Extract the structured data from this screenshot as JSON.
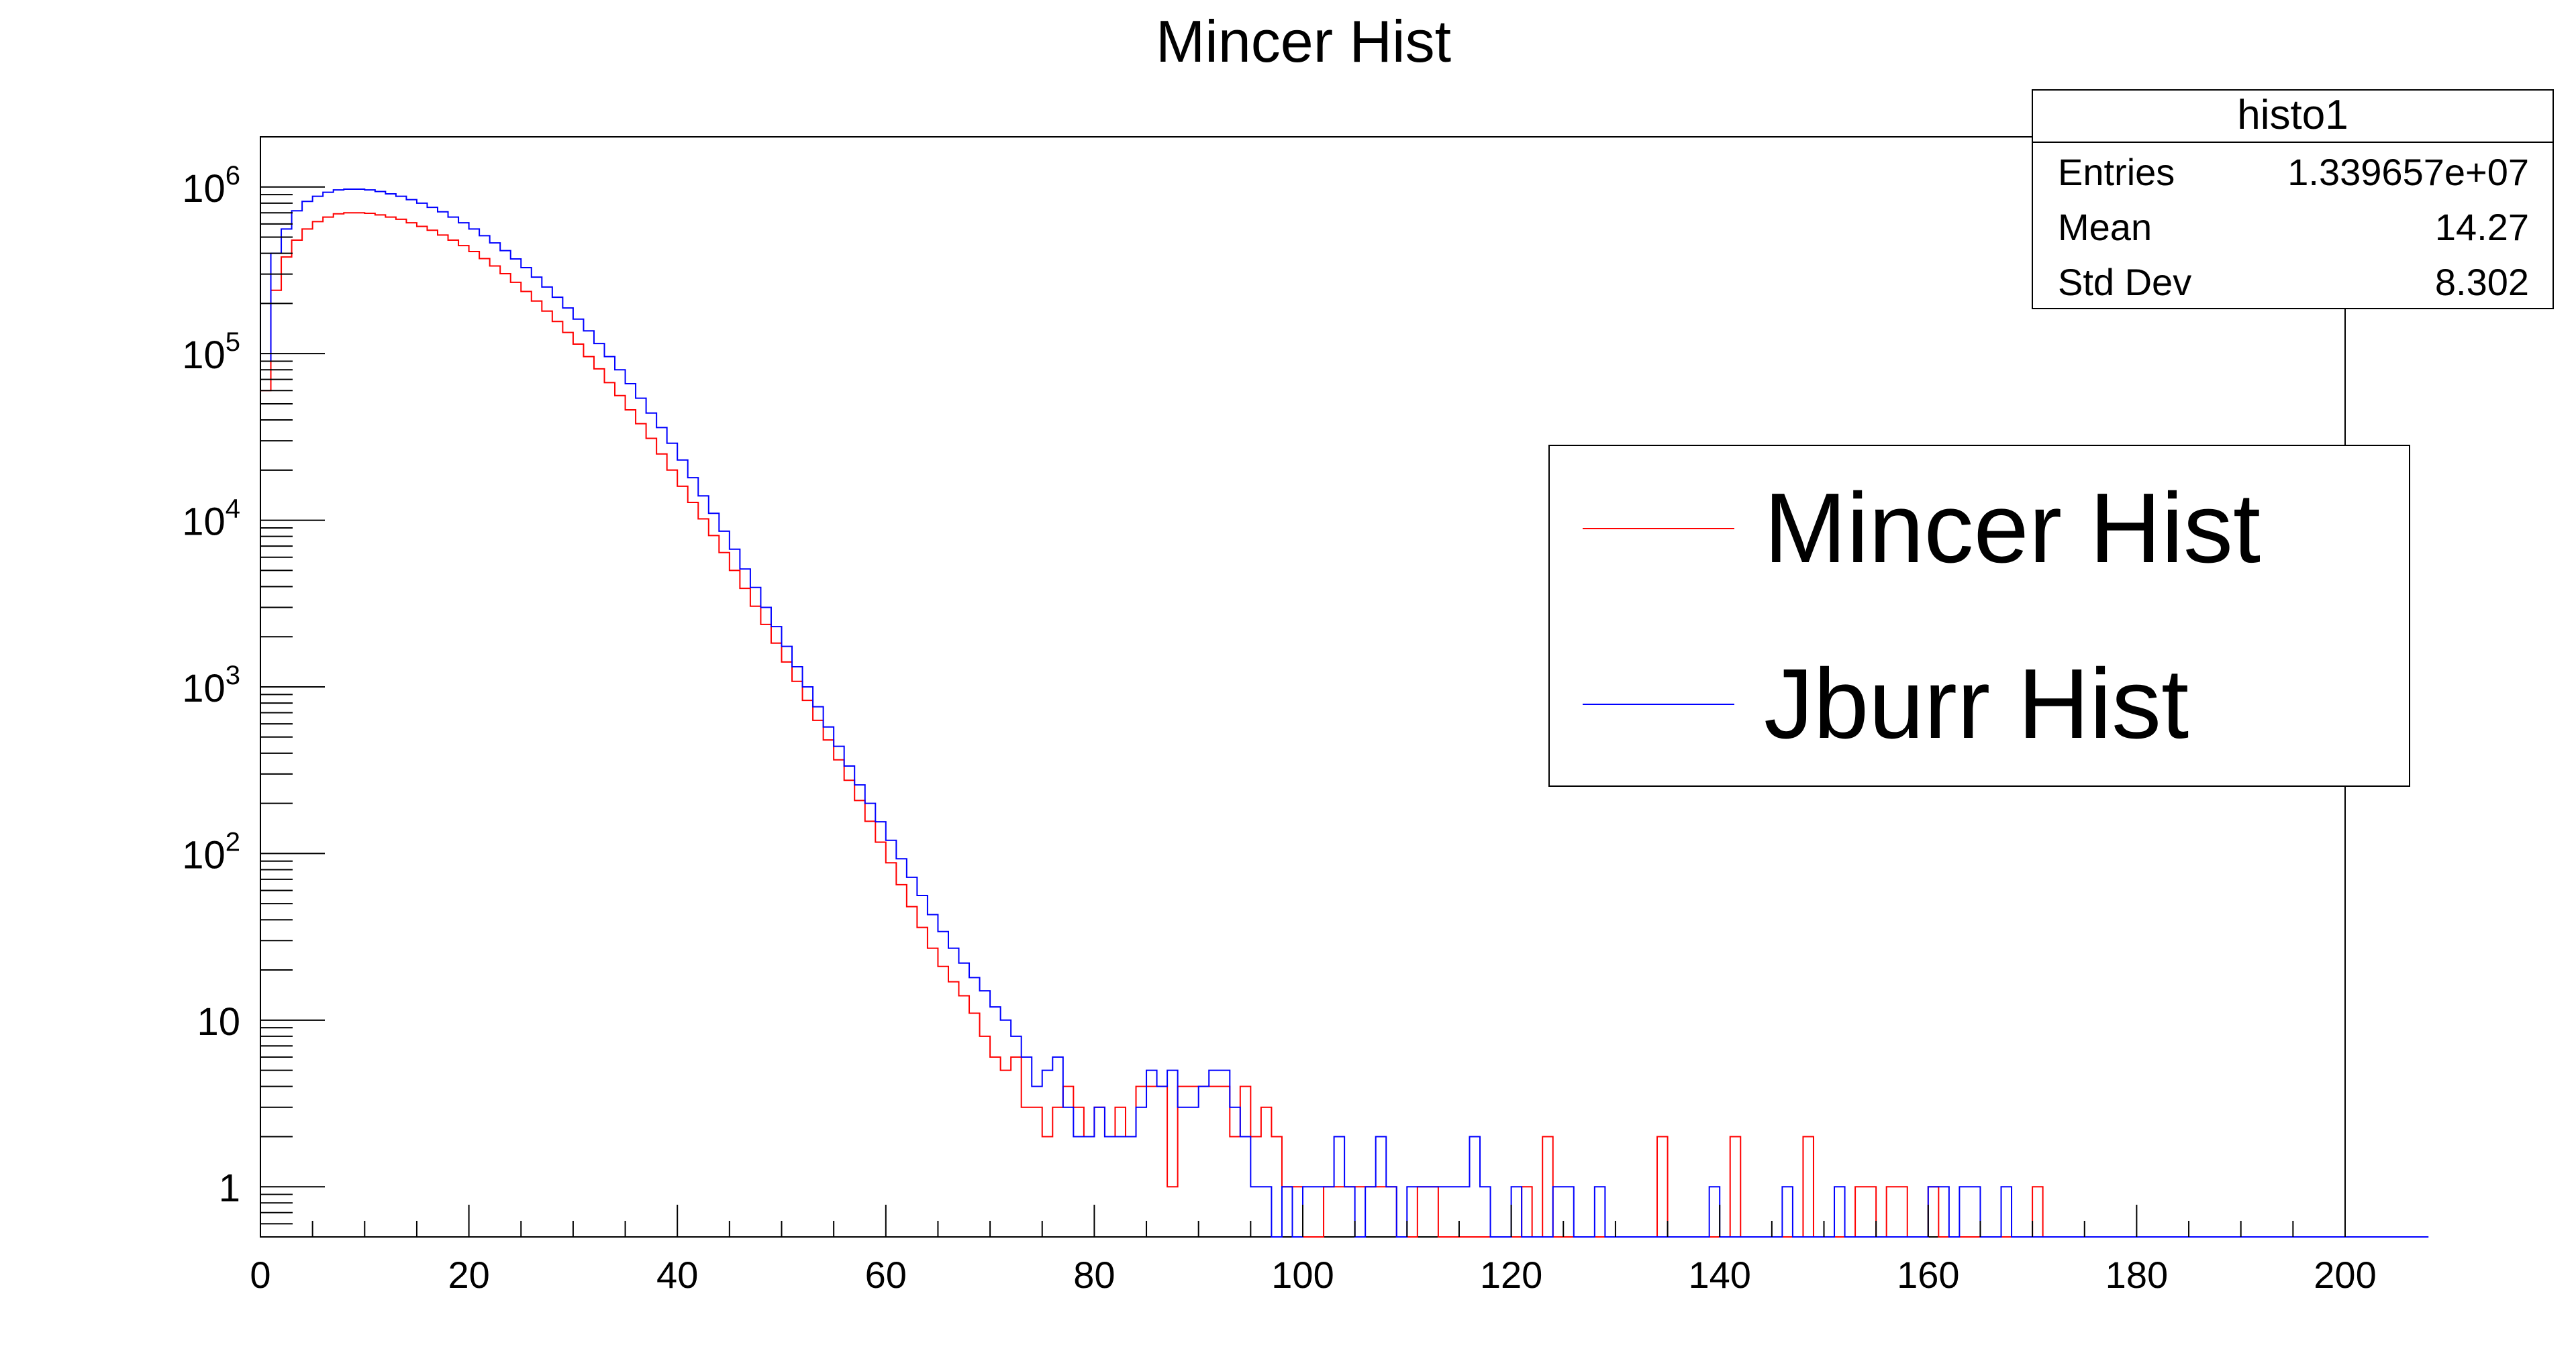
{
  "chart_data": {
    "type": "histogram",
    "title": "Mincer Hist",
    "xlabel": "",
    "ylabel": "",
    "xlim": [
      0,
      200
    ],
    "ylim": [
      0.5,
      2000000
    ],
    "y_scale": "log",
    "bin_width": 1,
    "grid": false,
    "x_ticks": [
      0,
      20,
      40,
      60,
      80,
      100,
      120,
      140,
      160,
      180,
      200
    ],
    "x_tick_labels": [
      "0",
      "20",
      "40",
      "60",
      "80",
      "100",
      "120",
      "140",
      "160",
      "180",
      "200"
    ],
    "y_ticks": [
      1,
      10,
      100,
      1000,
      10000,
      100000,
      1000000
    ],
    "y_tick_labels": [
      {
        "base": "1",
        "exp": ""
      },
      {
        "base": "10",
        "exp": ""
      },
      {
        "base": "10",
        "exp": "2"
      },
      {
        "base": "10",
        "exp": "3"
      },
      {
        "base": "10",
        "exp": "4"
      },
      {
        "base": "10",
        "exp": "5"
      },
      {
        "base": "10",
        "exp": "6"
      }
    ],
    "series": [
      {
        "name": "Mincer Hist",
        "color": "#ff0000",
        "values": [
          60000,
          240000,
          380000,
          480000,
          560000,
          620000,
          660000,
          690000,
          700000,
          700000,
          695000,
          680000,
          660000,
          640000,
          610000,
          580000,
          550000,
          515000,
          480000,
          445000,
          410000,
          372000,
          336000,
          302000,
          268000,
          236000,
          207000,
          180000,
          156000,
          134000,
          114000,
          96000,
          81000,
          67000,
          56000,
          46000,
          38000,
          31000,
          25000,
          20000,
          16000,
          12800,
          10200,
          8100,
          6400,
          5000,
          3900,
          3050,
          2370,
          1830,
          1410,
          1080,
          830,
          630,
          480,
          365,
          275,
          208,
          156,
          117,
          88,
          65,
          48,
          36,
          27,
          21,
          17,
          14,
          11,
          8,
          6,
          5,
          6,
          3,
          3,
          2,
          3,
          4,
          3,
          2,
          3,
          2,
          3,
          2,
          4,
          4,
          4,
          1,
          4,
          4,
          4,
          4,
          4,
          2,
          4,
          2,
          3,
          2,
          1,
          1,
          0,
          0,
          1,
          1,
          1,
          1,
          1,
          1,
          1,
          0,
          0,
          1,
          1,
          0,
          0,
          0,
          0,
          0,
          0,
          0,
          0,
          1,
          0,
          2,
          0,
          0,
          0,
          0,
          0,
          0,
          0,
          0,
          0,
          0,
          2,
          0,
          0,
          0,
          0,
          0,
          0,
          2,
          0,
          0,
          0,
          0,
          0,
          0,
          2,
          0,
          0,
          0,
          0,
          1,
          1,
          0,
          1,
          1,
          0,
          0,
          1,
          0,
          0,
          0,
          0,
          0,
          0,
          0,
          0,
          0,
          1,
          0,
          0,
          0,
          0,
          0,
          0,
          0,
          0,
          0,
          0,
          0,
          0,
          0,
          0,
          0,
          0,
          0,
          0,
          0,
          0,
          0,
          0,
          0,
          0,
          0,
          0,
          0,
          0,
          0,
          0,
          0,
          0
        ]
      },
      {
        "name": "Jburr Hist",
        "color": "#0000ff",
        "values": [
          90000,
          400000,
          560000,
          720000,
          820000,
          880000,
          930000,
          960000,
          970000,
          970000,
          960000,
          940000,
          910000,
          880000,
          840000,
          800000,
          755000,
          710000,
          660000,
          610000,
          560000,
          510000,
          462000,
          415000,
          370000,
          328000,
          288000,
          251000,
          218000,
          188000,
          161000,
          137000,
          115000,
          96000,
          80000,
          66000,
          54000,
          44000,
          36000,
          29000,
          23000,
          18000,
          14000,
          11000,
          8600,
          6700,
          5100,
          3950,
          3000,
          2300,
          1750,
          1320,
          1000,
          760,
          575,
          440,
          335,
          258,
          200,
          155,
          120,
          93,
          72,
          56,
          43,
          34,
          27,
          22,
          18,
          15,
          12,
          10,
          8,
          6,
          4,
          5,
          6,
          3,
          2,
          2,
          3,
          2,
          2,
          2,
          3,
          5,
          4,
          5,
          3,
          3,
          4,
          5,
          5,
          3,
          2,
          1,
          1,
          0,
          1,
          0,
          1,
          1,
          1,
          2,
          1,
          0,
          1,
          2,
          1,
          0,
          1,
          1,
          1,
          1,
          1,
          1,
          2,
          1,
          0,
          0,
          1,
          0,
          0,
          0,
          1,
          1,
          0,
          0,
          1,
          0,
          0,
          0,
          0,
          0,
          0,
          0,
          0,
          0,
          0,
          1,
          0,
          0,
          0,
          0,
          0,
          0,
          1,
          0,
          0,
          0,
          0,
          1,
          0,
          0,
          0,
          0,
          0,
          0,
          0,
          0,
          1,
          1,
          0,
          1,
          1,
          0,
          0,
          1,
          0,
          0,
          0,
          0,
          0,
          0,
          0,
          0,
          0,
          0,
          0,
          0,
          0,
          0,
          0,
          0,
          0,
          0,
          0,
          0,
          0,
          0,
          0,
          0,
          0,
          0,
          0,
          0,
          0,
          0,
          0,
          0,
          0,
          0,
          0,
          0,
          0,
          0,
          0,
          0
        ]
      }
    ],
    "stats_box": {
      "title": "histo1",
      "rows": [
        {
          "label": "Entries",
          "value": "1.339657e+07"
        },
        {
          "label": "Mean",
          "value": "14.27"
        },
        {
          "label": "Std Dev",
          "value": "8.302"
        }
      ]
    },
    "legend_position": "right"
  }
}
